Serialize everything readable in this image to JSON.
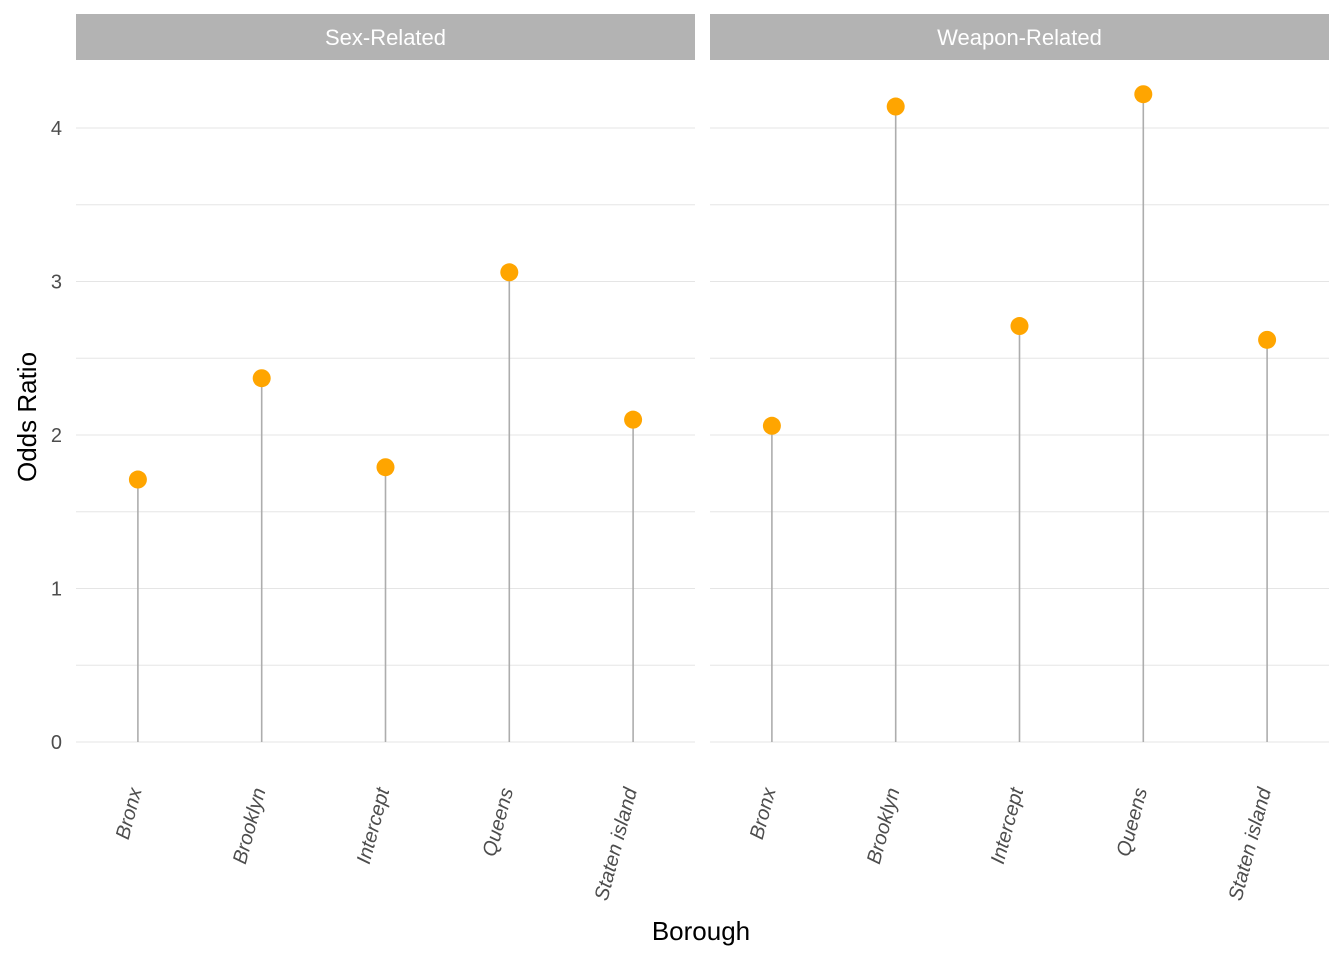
{
  "chart_data": {
    "type": "lollipop",
    "xlabel": "Borough",
    "ylabel": "Odds Ratio",
    "ylim": [
      0,
      4.4
    ],
    "yticks": [
      0,
      1,
      2,
      3,
      4
    ],
    "grid": true,
    "categories": [
      "Bronx",
      "Brooklyn",
      "Intercept",
      "Queens",
      "Staten island"
    ],
    "colors": {
      "point": "#FFA500",
      "stem": "#ADADAD",
      "strip": "#B3B3B3",
      "grid": "#E5E5E5"
    },
    "panels": [
      {
        "name": "Sex-Related",
        "values": [
          1.71,
          2.37,
          1.79,
          3.06,
          2.1
        ]
      },
      {
        "name": "Weapon-Related",
        "values": [
          2.06,
          4.14,
          2.71,
          4.22,
          2.62
        ]
      }
    ]
  }
}
